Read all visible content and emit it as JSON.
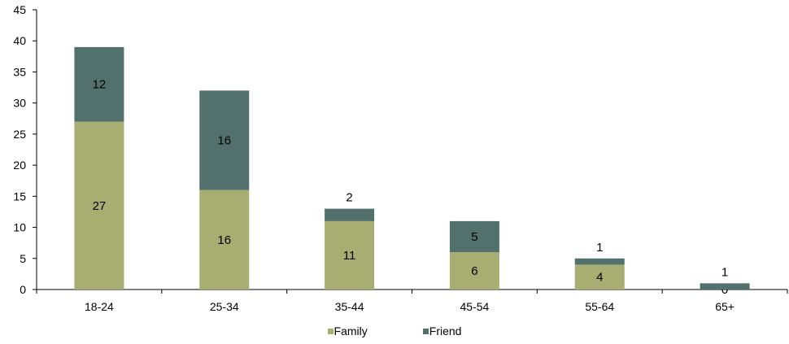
{
  "chart_data": {
    "type": "bar",
    "stacked": true,
    "categories": [
      "18-24",
      "25-34",
      "35-44",
      "45-54",
      "55-64",
      "65+"
    ],
    "series": [
      {
        "name": "Family",
        "color": "#a8ae72",
        "values": [
          27,
          16,
          11,
          6,
          4,
          0
        ]
      },
      {
        "name": "Friend",
        "color": "#52706c",
        "values": [
          12,
          16,
          2,
          5,
          1,
          1
        ]
      }
    ],
    "ylim": [
      0,
      45
    ],
    "yticks": [
      0,
      5,
      10,
      15,
      20,
      25,
      30,
      35,
      40,
      45
    ],
    "grid": false,
    "legend": "bottom"
  }
}
